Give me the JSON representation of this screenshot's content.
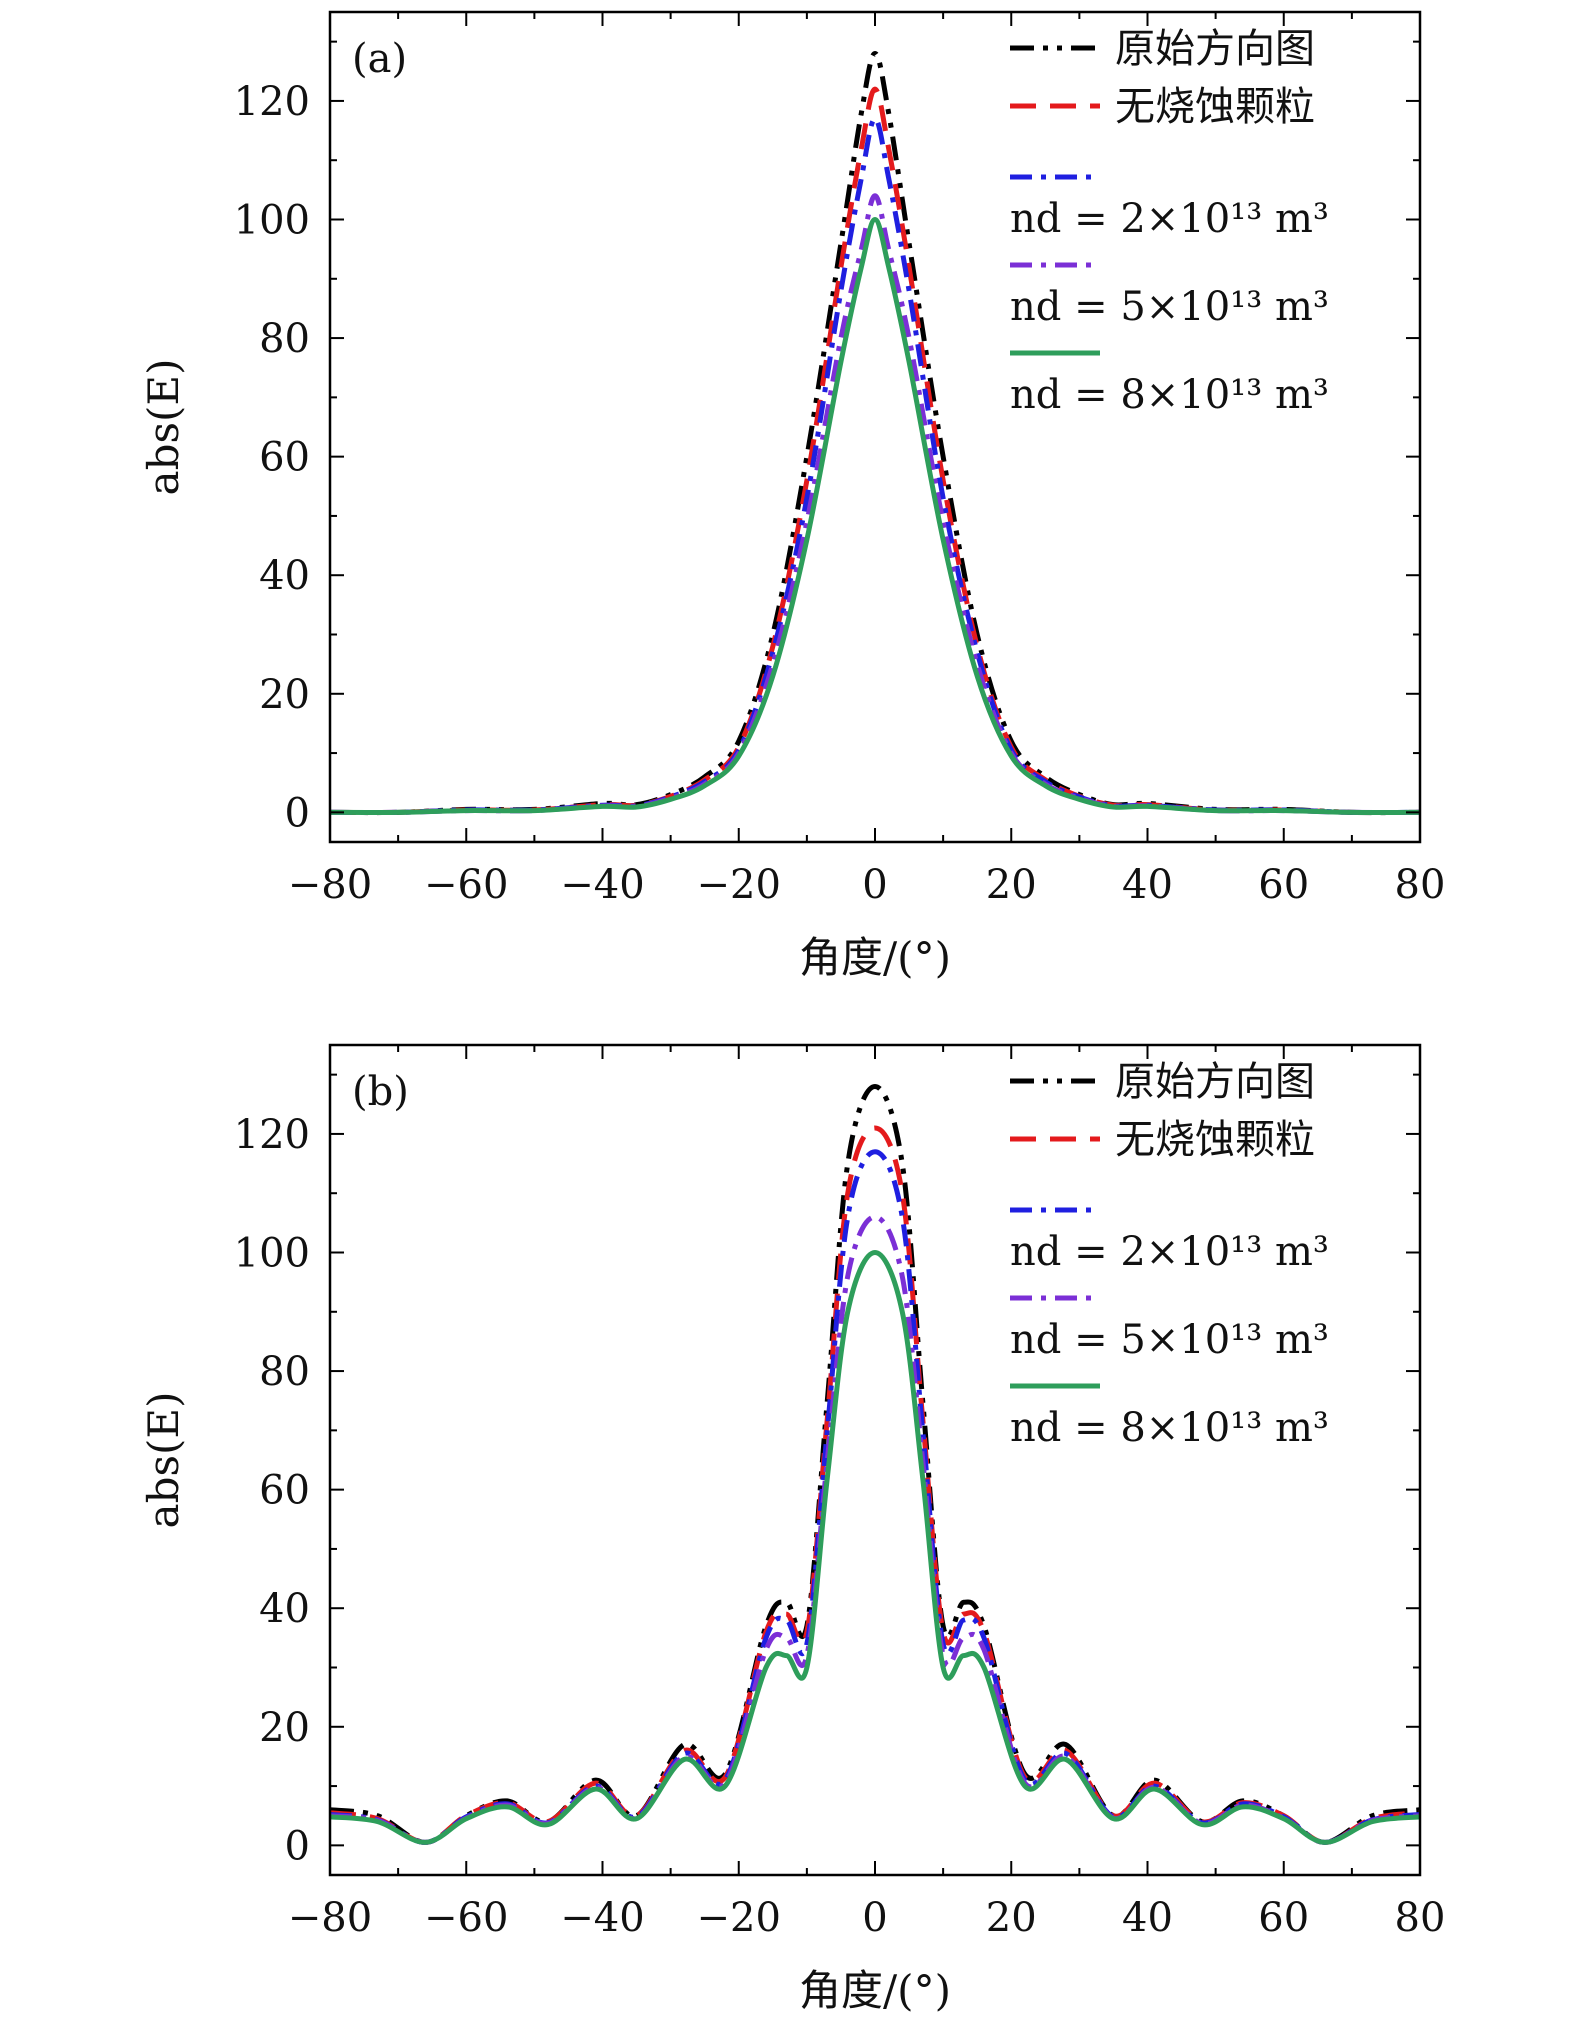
{
  "chart_data": [
    {
      "type": "line",
      "panel_label": "(a)",
      "xlabel": "角度/(°)",
      "ylabel": "abs(E)",
      "xlim": [
        -80,
        80
      ],
      "ylim": [
        -5,
        135
      ],
      "xticks": [
        -80,
        -60,
        -40,
        -20,
        0,
        20,
        40,
        60,
        80
      ],
      "xtick_labels": [
        "−80",
        "−60",
        "−40",
        "−20",
        "0",
        "20",
        "40",
        "60",
        "80"
      ],
      "yticks": [
        0,
        20,
        40,
        60,
        80,
        100,
        120
      ],
      "ytick_labels": [
        "0",
        "20",
        "40",
        "60",
        "80",
        "100",
        "120"
      ],
      "grid": false,
      "legend_position": "top-right",
      "legend_labels": [
        "原始方向图",
        "无烧蚀颗粒",
        "nd = 2×10¹³ m³",
        "nd = 5×10¹³ m³",
        "nd = 8×10¹³ m³"
      ],
      "x": [
        -80,
        -70,
        -60,
        -50,
        -40,
        -35,
        -30,
        -25,
        -20,
        -15,
        -10,
        -5,
        -2,
        0,
        2,
        5,
        10,
        15,
        20,
        25,
        30,
        35,
        40,
        50,
        60,
        70,
        80
      ],
      "series": [
        {
          "name": "原始方向图",
          "color": "#000000",
          "dash": "dashdotdot",
          "values": [
            0,
            0,
            0.5,
            0.5,
            1.5,
            1.3,
            3,
            6,
            12,
            30,
            60,
            96,
            118,
            128,
            118,
            96,
            60,
            30,
            12,
            6,
            3,
            1.3,
            1.5,
            0.5,
            0.5,
            0,
            0
          ]
        },
        {
          "name": "无烧蚀颗粒",
          "color": "#e41a1c",
          "dash": "dash",
          "values": [
            0,
            0,
            0.4,
            0.4,
            1.3,
            1.2,
            2.7,
            5.5,
            11,
            28,
            56,
            92,
            112,
            122,
            112,
            92,
            56,
            28,
            11,
            5.5,
            2.7,
            1.2,
            1.3,
            0.4,
            0.4,
            0,
            0
          ]
        },
        {
          "name": "nd = 2×10¹³ m³",
          "color": "#1f1fe0",
          "dash": "dashdot",
          "values": [
            0,
            0,
            0.4,
            0.4,
            1.2,
            1.1,
            2.6,
            5.2,
            10.5,
            27,
            53,
            88,
            107,
            117,
            107,
            88,
            53,
            27,
            10.5,
            5.2,
            2.6,
            1.1,
            1.2,
            0.4,
            0.4,
            0,
            0
          ]
        },
        {
          "name": "nd = 5×10¹³ m³",
          "color": "#7b2fd6",
          "dash": "dashdot",
          "values": [
            0,
            0,
            0.3,
            0.3,
            1.1,
            1.0,
            2.4,
            4.8,
            10,
            25,
            49,
            80,
            95,
            104,
            95,
            80,
            49,
            25,
            10,
            4.8,
            2.4,
            1.0,
            1.1,
            0.3,
            0.3,
            0,
            0
          ]
        },
        {
          "name": "nd = 8×10¹³ m³",
          "color": "#2e9e5b",
          "dash": "solid",
          "values": [
            0,
            0,
            0.3,
            0.3,
            1.0,
            0.9,
            2.2,
            4.5,
            9.5,
            23,
            46,
            76,
            92,
            100,
            92,
            76,
            46,
            23,
            9.5,
            4.5,
            2.2,
            0.9,
            1.0,
            0.3,
            0.3,
            0,
            0
          ]
        }
      ]
    },
    {
      "type": "line",
      "panel_label": "(b)",
      "xlabel": "角度/(°)",
      "ylabel": "abs(E)",
      "xlim": [
        -80,
        80
      ],
      "ylim": [
        -5,
        135
      ],
      "xticks": [
        -80,
        -60,
        -40,
        -20,
        0,
        20,
        40,
        60,
        80
      ],
      "xtick_labels": [
        "−80",
        "−60",
        "−40",
        "−20",
        "0",
        "20",
        "40",
        "60",
        "80"
      ],
      "yticks": [
        0,
        20,
        40,
        60,
        80,
        100,
        120
      ],
      "ytick_labels": [
        "0",
        "20",
        "40",
        "60",
        "80",
        "100",
        "120"
      ],
      "grid": false,
      "legend_position": "top-right",
      "legend_labels": [
        "原始方向图",
        "无烧蚀颗粒",
        "nd = 2×10¹³ m³",
        "nd = 5×10¹³ m³",
        "nd = 8×10¹³ m³"
      ],
      "x": [
        -80,
        -73,
        -66,
        -60,
        -54,
        -48,
        -41,
        -35,
        -28,
        -22,
        -16,
        -13,
        -10,
        -7,
        -4,
        0,
        4,
        7,
        10,
        13,
        16,
        22,
        28,
        35,
        41,
        48,
        54,
        60,
        66,
        73,
        80
      ],
      "series": [
        {
          "name": "原始方向图",
          "color": "#000000",
          "dash": "dashdotdot",
          "values": [
            6,
            5,
            0.5,
            5,
            7.5,
            4,
            11,
            5,
            17,
            12,
            37,
            41,
            37,
            75,
            115,
            128,
            115,
            75,
            37,
            41,
            37,
            12,
            17,
            5,
            11,
            4,
            7.5,
            5,
            0.5,
            5,
            6
          ]
        },
        {
          "name": "无烧蚀颗粒",
          "color": "#e41a1c",
          "dash": "dash",
          "values": [
            5.5,
            4.5,
            0.5,
            5,
            7.2,
            4,
            10.5,
            5,
            16,
            11.5,
            36,
            39,
            36,
            72,
            110,
            121,
            110,
            72,
            36,
            39,
            36,
            11.5,
            16,
            5,
            10.5,
            4,
            7.2,
            5,
            0.5,
            4.5,
            5.5
          ]
        },
        {
          "name": "nd = 2×10¹³ m³",
          "color": "#1f1fe0",
          "dash": "dashdot",
          "values": [
            5.2,
            4.3,
            0.5,
            4.8,
            7,
            3.8,
            10,
            4.8,
            15.5,
            11,
            35,
            38,
            34,
            70,
            106,
            117,
            106,
            70,
            34,
            38,
            35,
            11,
            15.5,
            4.8,
            10,
            3.8,
            7,
            4.8,
            0.5,
            4.3,
            5.2
          ]
        },
        {
          "name": "nd = 5×10¹³ m³",
          "color": "#7b2fd6",
          "dash": "dashdot",
          "values": [
            5,
            4.2,
            0.5,
            4.6,
            6.8,
            3.7,
            9.8,
            4.6,
            15,
            10.5,
            33,
            35,
            32,
            65,
            96,
            106,
            96,
            65,
            32,
            35,
            33,
            10.5,
            15,
            4.6,
            9.8,
            3.7,
            6.8,
            4.6,
            0.5,
            4.2,
            5
          ]
        },
        {
          "name": "nd = 8×10¹³ m³",
          "color": "#2e9e5b",
          "dash": "solid",
          "values": [
            4.8,
            4,
            0.5,
            4.5,
            6.5,
            3.5,
            9.5,
            4.5,
            14.5,
            10,
            30,
            32,
            30,
            62,
            90,
            100,
            90,
            62,
            30,
            32,
            30,
            10,
            14.5,
            4.5,
            9.5,
            3.5,
            6.5,
            4.5,
            0.5,
            4,
            4.8
          ]
        }
      ]
    }
  ]
}
